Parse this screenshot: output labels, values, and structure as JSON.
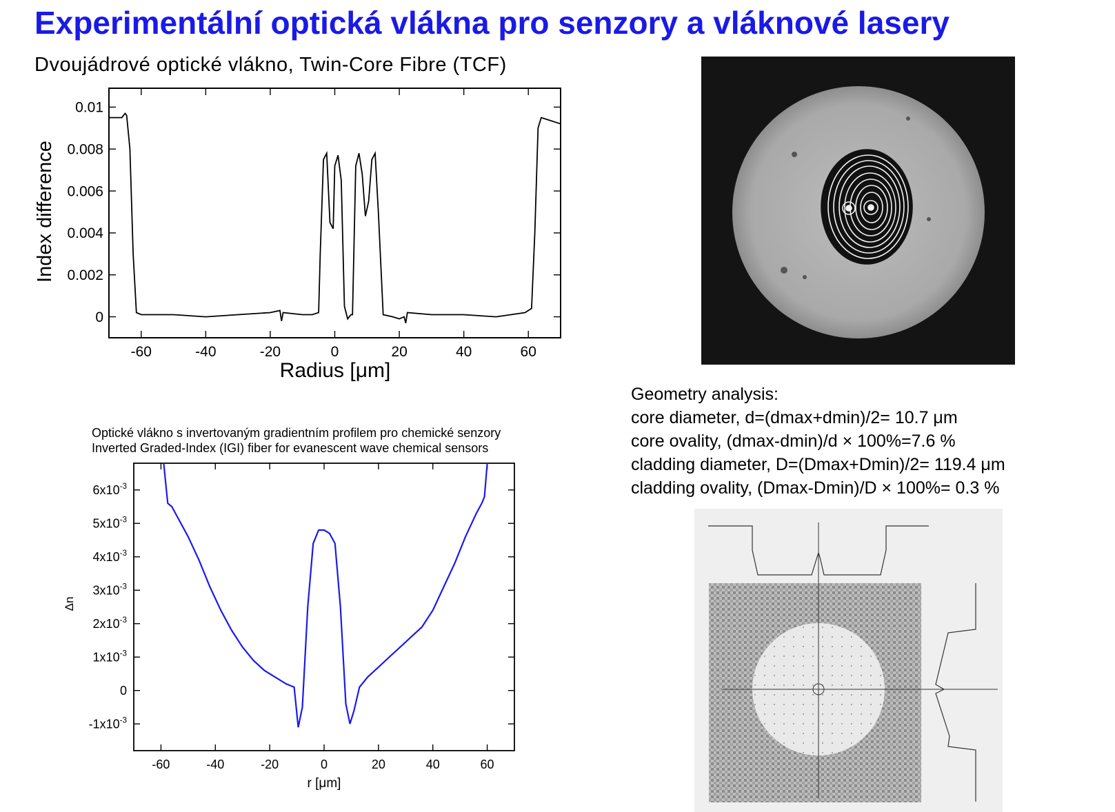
{
  "title": "Experimentální optická vlákna pro senzory a vláknové lasery",
  "tcf_subtitle": "Dvoujádrové optické vlákno, Twin-Core Fibre (TCF)",
  "igi_title_cz": "Optické vlákno s invertovaným gradientním profilem pro chemické senzory",
  "igi_title_en": "Inverted Graded-Index (IGI) fiber for evanescent wave chemical sensors",
  "geometry": {
    "heading": "Geometry analysis:",
    "lines": [
      "core diameter, d=(dmax+dmin)/2= 10.7 μm",
      "core ovality, (dmax-dmin)/d × 100%=7.6 %",
      "cladding diameter, D=(Dmax+Dmin)/2= 119.4 μm",
      "cladding ovality, (Dmax-Dmin)/D × 100%= 0.3 %"
    ]
  },
  "images": {
    "fiber_photo": "microscope image of twin-core fibre cross-section",
    "profile_map": "2D refractive index profile scan with cross-section curves"
  },
  "colors": {
    "title": "#1a1ae6",
    "igi_curve": "#1a1aee",
    "tcf_curve": "#000000"
  },
  "chart_data": [
    {
      "type": "line",
      "xlabel": "Radius [μm]",
      "ylabel": "Index difference",
      "xlim": [
        -70,
        70
      ],
      "ylim": [
        -0.001,
        0.0109
      ],
      "xticks": [
        -60,
        -40,
        -20,
        0,
        20,
        40,
        60
      ],
      "xticklabels": [
        "-60",
        "-40",
        "-20",
        "0",
        "20",
        "40",
        "60"
      ],
      "yticks": [
        0,
        0.002,
        0.004,
        0.006,
        0.008,
        0.01
      ],
      "yticklabels": [
        "0",
        "0.002",
        "0.004",
        "0.006",
        "0.008",
        "0.01"
      ],
      "grid": false,
      "series": [
        {
          "x": [
            -70,
            -66,
            -65,
            -64.5,
            -63.5,
            -62.5,
            -61.5,
            -60,
            -50,
            -40,
            -30,
            -20,
            -17,
            -16.5,
            -16,
            -10,
            -7,
            -5,
            -4.5,
            -3.5,
            -2.5,
            -1.5,
            -0.5,
            0,
            1,
            2,
            3,
            4,
            5,
            5.5,
            6.5,
            7.5,
            8.5,
            9.5,
            10.5,
            11.5,
            12.5,
            13.5,
            15,
            18,
            20,
            21.5,
            22,
            22.5,
            30,
            40,
            50,
            59,
            61,
            62,
            63,
            64,
            66,
            70
          ],
          "y": [
            0.0095,
            0.0095,
            0.0097,
            0.0096,
            0.008,
            0.003,
            0.0002,
            0.0001,
            0.0001,
            0,
            0.0001,
            0.0002,
            0.0003,
            -0.0002,
            0.0002,
            0.0001,
            0.0001,
            0.0002,
            0.003,
            0.0075,
            0.0078,
            0.0045,
            0.0042,
            0.0072,
            0.0077,
            0.0065,
            0.0005,
            -0.0001,
            0.0001,
            0.0001,
            0.0072,
            0.0078,
            0.0068,
            0.0048,
            0.0055,
            0.0075,
            0.0078,
            0.005,
            0.0001,
            0,
            -0.0001,
            0,
            -0.0003,
            0.0002,
            0.0001,
            0.0001,
            0,
            0.0002,
            0.0004,
            0.004,
            0.009,
            0.0095,
            0.0094,
            0.0092
          ]
        }
      ]
    },
    {
      "type": "line",
      "title": "Optické vlákno s invertovaným gradientním profilem pro chemické senzory / Inverted Graded-Index (IGI) fiber for evanescent wave chemical sensors",
      "xlabel": "r [μm]",
      "ylabel": "Δn",
      "xlim": [
        -70,
        70
      ],
      "ylim": [
        -0.0018,
        0.0068
      ],
      "xticks": [
        -60,
        -40,
        -20,
        0,
        20,
        40,
        60
      ],
      "xticklabels": [
        "-60",
        "-40",
        "-20",
        "0",
        "20",
        "40",
        "60"
      ],
      "yticks": [
        -0.001,
        0,
        0.001,
        0.002,
        0.003,
        0.004,
        0.005,
        0.006
      ],
      "yticklabels": [
        "-1x10-3",
        "0",
        "1x10-3",
        "2x10-3",
        "3x10-3",
        "4x10-3",
        "5x10-3",
        "6x10-3"
      ],
      "grid": false,
      "series": [
        {
          "x": [
            -59,
            -58,
            -57.5,
            -56,
            -54,
            -50,
            -46,
            -42,
            -38,
            -34,
            -30,
            -26,
            -22,
            -18,
            -14,
            -11,
            -9.5,
            -8,
            -6,
            -4,
            -2,
            0,
            2,
            4,
            6,
            8,
            9.5,
            11,
            13,
            16,
            20,
            24,
            28,
            32,
            36,
            40,
            44,
            48,
            52,
            56,
            58,
            59,
            60
          ],
          "y": [
            0.0068,
            0.006,
            0.0056,
            0.0055,
            0.0052,
            0.0046,
            0.0039,
            0.0031,
            0.0024,
            0.0018,
            0.0013,
            0.0009,
            0.0006,
            0.0004,
            0.0002,
            0.0001,
            -0.0011,
            -0.0005,
            0.0025,
            0.0044,
            0.0048,
            0.0048,
            0.0047,
            0.0044,
            0.0025,
            -0.0004,
            -0.001,
            -0.0006,
            0.0001,
            0.0004,
            0.0007,
            0.001,
            0.0013,
            0.0016,
            0.0019,
            0.0024,
            0.0031,
            0.0038,
            0.0046,
            0.0053,
            0.0056,
            0.0058,
            0.0068
          ]
        }
      ]
    }
  ]
}
